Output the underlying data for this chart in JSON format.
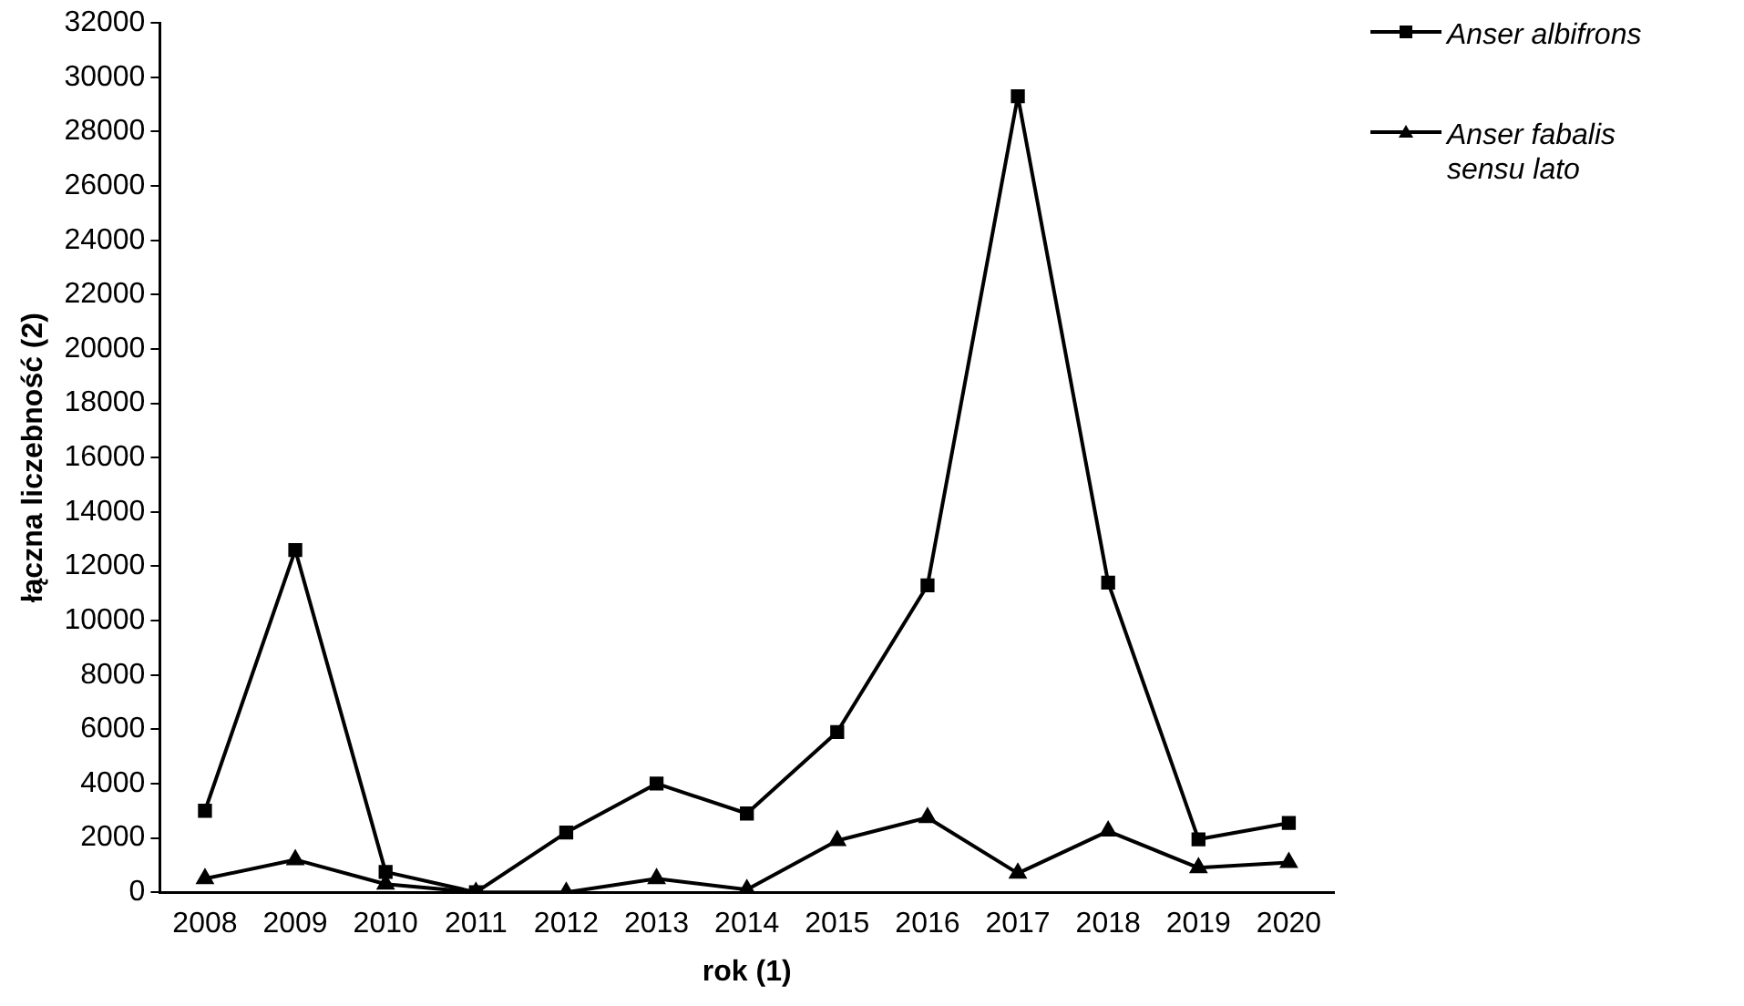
{
  "chart_data": {
    "type": "line",
    "xlabel": "rok (1)",
    "ylabel": "łączna liczebność (2)",
    "categories": [
      "2008",
      "2009",
      "2010",
      "2011",
      "2012",
      "2013",
      "2014",
      "2015",
      "2016",
      "2017",
      "2018",
      "2019",
      "2020"
    ],
    "series": [
      {
        "name": "Anser albifrons",
        "color": "#000000",
        "marker": "square",
        "values": [
          3000,
          12600,
          750,
          0,
          2200,
          4000,
          2900,
          5900,
          11300,
          29300,
          11400,
          1950,
          2550
        ]
      },
      {
        "name": "Anser fabalis sensu lato",
        "color": "#000000",
        "marker": "triangle",
        "values": [
          500,
          1200,
          300,
          0,
          0,
          500,
          100,
          1900,
          2750,
          700,
          2250,
          900,
          1100
        ]
      }
    ],
    "ylim": [
      0,
      32000
    ],
    "yticks": [
      0,
      2000,
      4000,
      6000,
      8000,
      10000,
      12000,
      14000,
      16000,
      18000,
      20000,
      22000,
      24000,
      26000,
      28000,
      30000,
      32000
    ],
    "grid": false,
    "legend": "top right",
    "line_style": "solid"
  }
}
